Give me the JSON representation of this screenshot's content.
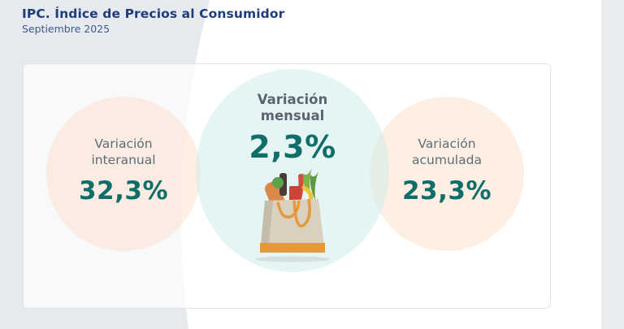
{
  "header": {
    "title": "IPC. Índice de Precios al Consumidor",
    "subtitle": "Septiembre 2025"
  },
  "metrics": {
    "interanual": {
      "label_line1": "Variación",
      "label_line2": "interanual",
      "value": "32,3%"
    },
    "mensual": {
      "label_line1": "Variación",
      "label_line2": "mensual",
      "value": "2,3%"
    },
    "acumulada": {
      "label_line1": "Variación",
      "label_line2": "acumulada",
      "value": "23,3%"
    }
  },
  "colors": {
    "title": "#1f3d7a",
    "value": "#0f6e6a",
    "peach_circle": "#fce2ce",
    "mint_circle": "#d0ecea"
  },
  "icons": [
    "grocery-bag-icon"
  ]
}
